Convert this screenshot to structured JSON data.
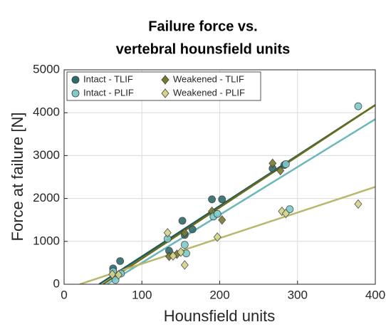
{
  "chart_data": {
    "type": "scatter",
    "title": [
      "Failure force vs.",
      "vertebral hounsfield units"
    ],
    "x_label": "Hounsfield units",
    "y_label": "Force at failure [N]",
    "xlim": [
      0,
      400
    ],
    "xticks": [
      0,
      100,
      200,
      300,
      400
    ],
    "ylim": [
      0,
      5000
    ],
    "yticks": [
      0,
      1000,
      2000,
      3000,
      4000,
      5000
    ],
    "grid": true,
    "legend": "top-left",
    "series": [
      {
        "name": "Intact - TLIF",
        "marker": "circle",
        "color": "#2e6b6b",
        "line_color": "#1f5a5a",
        "x": [
          63,
          72,
          135,
          152,
          155,
          165,
          190,
          203,
          268,
          283
        ],
        "values": [
          370,
          540,
          780,
          1480,
          1150,
          1280,
          1980,
          1980,
          2700,
          2780
        ],
        "trend": {
          "x": [
            45,
            400
          ],
          "y": [
            0,
            4180
          ]
        }
      },
      {
        "name": "Weakened - TLIF",
        "marker": "diamond",
        "color": "#7a7a30",
        "line_color": "#6b6b1f",
        "x": [
          64,
          135,
          145,
          155,
          190,
          203,
          268,
          278
        ],
        "values": [
          200,
          650,
          700,
          1200,
          1700,
          1500,
          2820,
          2650
        ],
        "trend": {
          "x": [
            50,
            400
          ],
          "y": [
            0,
            4180
          ]
        }
      },
      {
        "name": "Intact - PLIF",
        "marker": "circle",
        "color": "#7ccccc",
        "line_color": "#6ab8b8",
        "x": [
          63,
          66,
          73,
          133,
          155,
          157,
          192,
          197,
          285,
          290,
          378
        ],
        "values": [
          300,
          100,
          250,
          1060,
          920,
          720,
          1580,
          1640,
          2800,
          1750,
          4150
        ],
        "trend": {
          "x": [
            55,
            400
          ],
          "y": [
            0,
            3850
          ]
        }
      },
      {
        "name": "Weakened - PLIF",
        "marker": "diamond",
        "color": "#d4d48a",
        "line_color": "#b8b86a",
        "x": [
          62,
          70,
          133,
          140,
          150,
          155,
          197,
          280,
          285,
          378
        ],
        "values": [
          230,
          220,
          1200,
          660,
          750,
          450,
          1100,
          1700,
          1650,
          1870
        ],
        "trend": {
          "x": [
            20,
            400
          ],
          "y": [
            0,
            2270
          ]
        }
      }
    ]
  }
}
